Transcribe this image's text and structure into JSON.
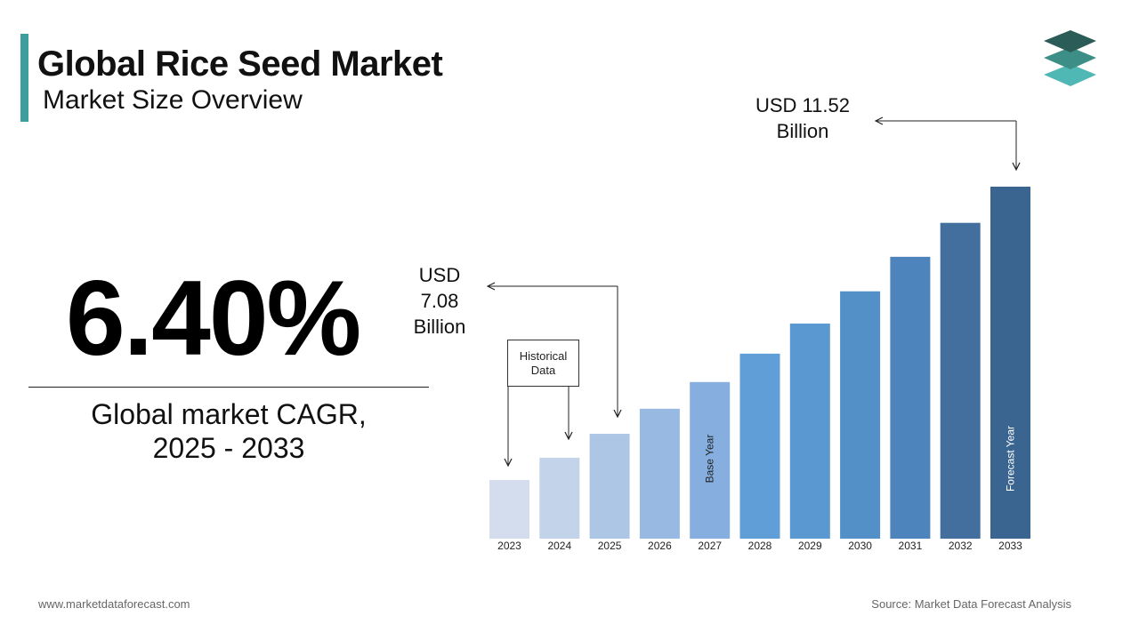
{
  "header": {
    "title": "Global Rice Seed Market",
    "subtitle": "Market Size Overview"
  },
  "cagr": {
    "value": "6.40%",
    "label_line1": "Global market CAGR,",
    "label_line2": "2025 - 2033"
  },
  "callouts": {
    "start": {
      "line1": "USD",
      "line2": "7.08",
      "line3": "Billion"
    },
    "end": {
      "line1": "USD 11.52",
      "line2": "Billion"
    },
    "historical_line1": "Historical",
    "historical_line2": "Data"
  },
  "footer": {
    "website": "www.marketdataforecast.com",
    "source": "Source: Market Data Forecast Analysis"
  },
  "colors": {
    "accent": "#3e9e9b",
    "bars": [
      "#d3ddee",
      "#c3d3ea",
      "#aec6e6",
      "#98b9e2",
      "#86afe0",
      "#5f9ed6",
      "#5a98d2",
      "#5490c8",
      "#4c84bb",
      "#436f9f",
      "#3a6591"
    ]
  },
  "chart_data": {
    "type": "bar",
    "title": "",
    "xlabel": "",
    "ylabel": "",
    "unit": "USD Billion",
    "categories": [
      "2023",
      "2024",
      "2025",
      "2026",
      "2027",
      "2028",
      "2029",
      "2030",
      "2031",
      "2032",
      "2033"
    ],
    "values": [
      6.25,
      6.65,
      7.08,
      7.53,
      8.01,
      8.52,
      9.06,
      9.64,
      10.26,
      10.87,
      11.52
    ],
    "bar_annotations": [
      {
        "category": "2027",
        "text": "Base Year"
      },
      {
        "category": "2033",
        "text": "Forecast Year"
      }
    ],
    "grid": false,
    "legend": "none"
  }
}
